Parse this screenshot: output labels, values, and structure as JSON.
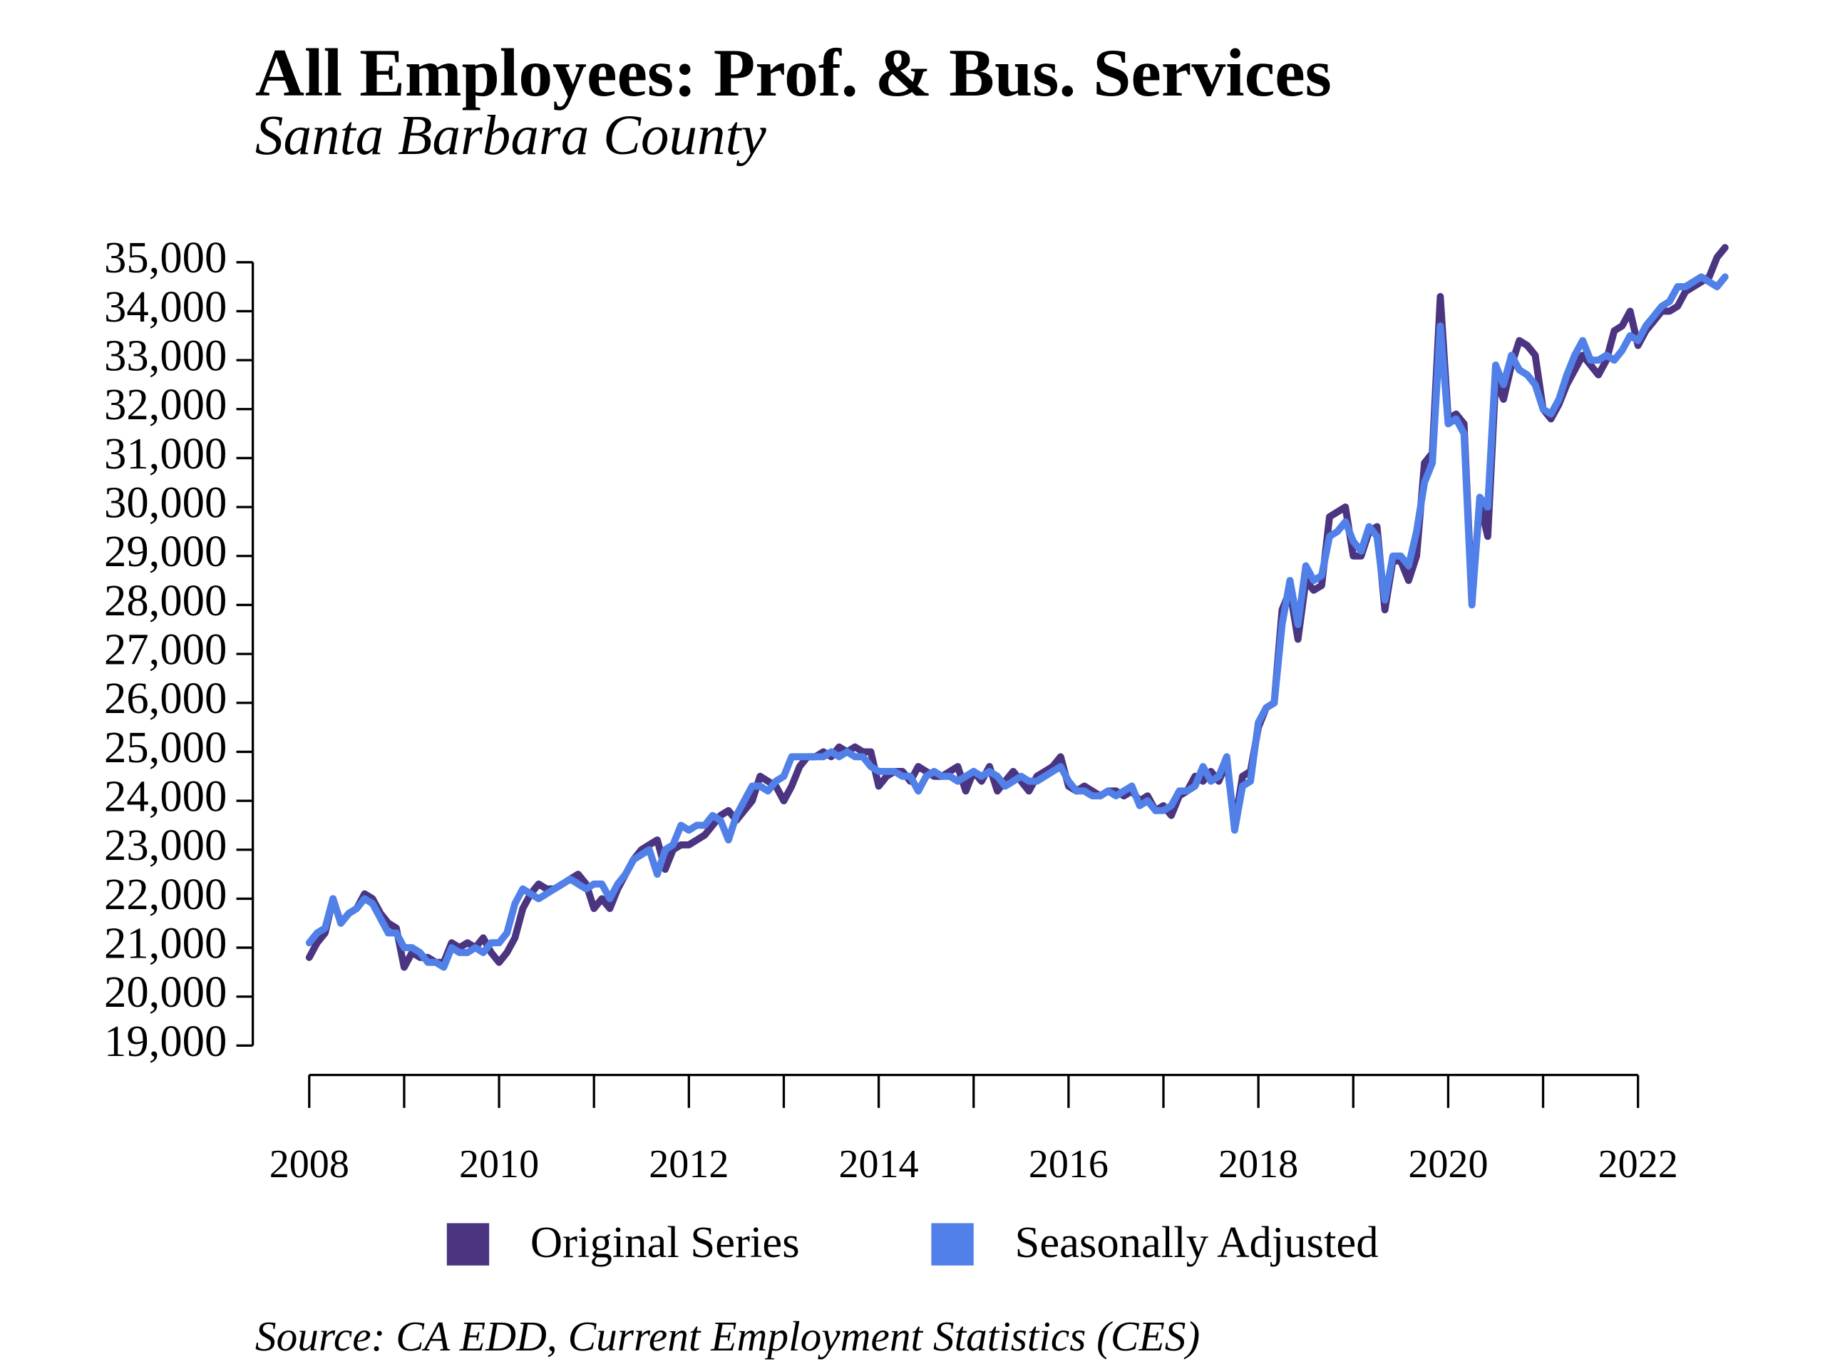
{
  "chart_data": {
    "type": "line",
    "title": "All Employees: Prof. & Bus. Services",
    "subtitle": "Santa Barbara County",
    "source": "Source: CA EDD, Current Employment Statistics (CES)",
    "legend": "bottom",
    "x": [
      2008,
      2008.083,
      2008.167,
      2008.25,
      2008.333,
      2008.417,
      2008.5,
      2008.583,
      2008.667,
      2008.75,
      2008.833,
      2008.917,
      2009,
      2009.083,
      2009.167,
      2009.25,
      2009.333,
      2009.417,
      2009.5,
      2009.583,
      2009.667,
      2009.75,
      2009.833,
      2009.917,
      2010,
      2010.083,
      2010.167,
      2010.25,
      2010.333,
      2010.417,
      2010.5,
      2010.583,
      2010.667,
      2010.75,
      2010.833,
      2010.917,
      2011,
      2011.083,
      2011.167,
      2011.25,
      2011.333,
      2011.417,
      2011.5,
      2011.583,
      2011.667,
      2011.75,
      2011.833,
      2011.917,
      2012,
      2012.083,
      2012.167,
      2012.25,
      2012.333,
      2012.417,
      2012.5,
      2012.583,
      2012.667,
      2012.75,
      2012.833,
      2012.917,
      2013,
      2013.083,
      2013.167,
      2013.25,
      2013.333,
      2013.417,
      2013.5,
      2013.583,
      2013.667,
      2013.75,
      2013.833,
      2013.917,
      2014,
      2014.083,
      2014.167,
      2014.25,
      2014.333,
      2014.417,
      2014.5,
      2014.583,
      2014.667,
      2014.75,
      2014.833,
      2014.917,
      2015,
      2015.083,
      2015.167,
      2015.25,
      2015.333,
      2015.417,
      2015.5,
      2015.583,
      2015.667,
      2015.75,
      2015.833,
      2015.917,
      2016,
      2016.083,
      2016.167,
      2016.25,
      2016.333,
      2016.417,
      2016.5,
      2016.583,
      2016.667,
      2016.75,
      2016.833,
      2016.917,
      2017,
      2017.083,
      2017.167,
      2017.25,
      2017.333,
      2017.417,
      2017.5,
      2017.583,
      2017.667,
      2017.75,
      2017.833,
      2017.917,
      2018,
      2018.083,
      2018.167,
      2018.25,
      2018.333,
      2018.417,
      2018.5,
      2018.583,
      2018.667,
      2018.75,
      2018.833,
      2018.917,
      2019,
      2019.083,
      2019.167,
      2019.25,
      2019.333,
      2019.417,
      2019.5,
      2019.583,
      2019.667,
      2019.75,
      2019.833,
      2019.917,
      2020,
      2020.083,
      2020.167,
      2020.25,
      2020.333,
      2020.417,
      2020.5,
      2020.583,
      2020.667,
      2020.75,
      2020.833,
      2020.917,
      2021,
      2021.083,
      2021.167,
      2021.25,
      2021.333,
      2021.417,
      2021.5,
      2021.583,
      2021.667,
      2021.75,
      2021.833,
      2021.917,
      2022,
      2022.083,
      2022.167,
      2022.25,
      2022.333,
      2022.417,
      2022.5,
      2022.583,
      2022.667,
      2022.75,
      2022.833,
      2022.917
    ],
    "series": [
      {
        "name": "Original Series",
        "color": "#4b3480",
        "values": [
          20800,
          21100,
          21300,
          22000,
          21500,
          21700,
          21800,
          22100,
          22000,
          21700,
          21500,
          21400,
          20600,
          20900,
          20800,
          20800,
          20700,
          20700,
          21100,
          21000,
          21100,
          21000,
          21200,
          20900,
          20700,
          20900,
          21200,
          21800,
          22100,
          22300,
          22200,
          22200,
          22300,
          22400,
          22500,
          22300,
          21800,
          22000,
          21800,
          22200,
          22500,
          22800,
          23000,
          23100,
          23200,
          22600,
          23000,
          23100,
          23100,
          23200,
          23300,
          23500,
          23700,
          23800,
          23600,
          23800,
          24000,
          24500,
          24400,
          24300,
          24000,
          24300,
          24700,
          24900,
          24900,
          25000,
          24900,
          25100,
          25000,
          25100,
          25000,
          25000,
          24300,
          24500,
          24600,
          24600,
          24400,
          24700,
          24600,
          24500,
          24500,
          24600,
          24700,
          24200,
          24600,
          24400,
          24700,
          24200,
          24400,
          24600,
          24400,
          24200,
          24500,
          24600,
          24700,
          24900,
          24300,
          24200,
          24300,
          24200,
          24100,
          24200,
          24200,
          24100,
          24200,
          24000,
          24100,
          23800,
          23900,
          23700,
          24100,
          24200,
          24500,
          24400,
          24600,
          24400,
          24800,
          23500,
          24500,
          24600,
          25500,
          25900,
          26000,
          27900,
          28300,
          27300,
          28500,
          28300,
          28400,
          29800,
          29900,
          30000,
          29000,
          29000,
          29500,
          29600,
          27900,
          28900,
          28900,
          28500,
          29000,
          30900,
          31100,
          34300,
          31800,
          31900,
          31700,
          28100,
          30100,
          29400,
          32600,
          32200,
          32900,
          33400,
          33300,
          33100,
          32000,
          31800,
          32100,
          32500,
          32800,
          33100,
          32900,
          32700,
          33000,
          33600,
          33700,
          34000,
          33300,
          33600,
          33800,
          34000,
          34000,
          34100,
          34400,
          34500,
          34600,
          34700,
          35100,
          35300
        ]
      },
      {
        "name": "Seasonally Adjusted",
        "color": "#5080e8",
        "values": [
          21100,
          21300,
          21400,
          22000,
          21500,
          21700,
          21800,
          22000,
          21900,
          21600,
          21300,
          21300,
          21000,
          21000,
          20900,
          20700,
          20700,
          20600,
          21000,
          20900,
          20900,
          21000,
          20900,
          21100,
          21100,
          21300,
          21900,
          22200,
          22100,
          22000,
          22100,
          22200,
          22300,
          22400,
          22300,
          22200,
          22300,
          22300,
          22000,
          22300,
          22500,
          22800,
          22900,
          23000,
          22500,
          23000,
          23100,
          23500,
          23400,
          23500,
          23500,
          23700,
          23600,
          23200,
          23700,
          24000,
          24300,
          24300,
          24200,
          24400,
          24500,
          24900,
          24900,
          24900,
          24900,
          24900,
          25000,
          24900,
          25000,
          24900,
          24900,
          24700,
          24600,
          24600,
          24600,
          24500,
          24500,
          24200,
          24500,
          24600,
          24500,
          24500,
          24400,
          24500,
          24600,
          24500,
          24600,
          24500,
          24300,
          24400,
          24500,
          24400,
          24400,
          24500,
          24600,
          24700,
          24400,
          24200,
          24200,
          24100,
          24100,
          24200,
          24100,
          24200,
          24300,
          23900,
          24000,
          23800,
          23800,
          23900,
          24200,
          24200,
          24300,
          24700,
          24400,
          24500,
          24900,
          23400,
          24300,
          24400,
          25600,
          25900,
          26000,
          27600,
          28500,
          27600,
          28800,
          28500,
          28600,
          29400,
          29500,
          29700,
          29300,
          29100,
          29600,
          29400,
          28100,
          29000,
          29000,
          28800,
          29500,
          30500,
          30900,
          33700,
          31700,
          31800,
          31500,
          28000,
          30200,
          30000,
          32900,
          32500,
          33100,
          32800,
          32700,
          32500,
          32000,
          31900,
          32200,
          32700,
          33100,
          33400,
          33000,
          33000,
          33100,
          33000,
          33200,
          33500,
          33400,
          33700,
          33900,
          34100,
          34200,
          34500,
          34500,
          34600,
          34700,
          34600,
          34500,
          34700
        ]
      }
    ],
    "xlim": [
      2007.6,
      2023.3
    ],
    "xticks": [
      2008,
      2010,
      2012,
      2014,
      2016,
      2018,
      2020,
      2022
    ],
    "xminor_ticks": [
      2009,
      2011,
      2013,
      2015,
      2017,
      2019,
      2021
    ],
    "ylim": [
      18700,
      35600
    ],
    "yticks": [
      {
        "value": 19000,
        "label": "19,000"
      },
      {
        "value": 20000,
        "label": "20,000"
      },
      {
        "value": 21000,
        "label": "21,000"
      },
      {
        "value": 22000,
        "label": "22,000"
      },
      {
        "value": 23000,
        "label": "23,000"
      },
      {
        "value": 24000,
        "label": "24,000"
      },
      {
        "value": 25000,
        "label": "25,000"
      },
      {
        "value": 26000,
        "label": "26,000"
      },
      {
        "value": 27000,
        "label": "27,000"
      },
      {
        "value": 28000,
        "label": "28,000"
      },
      {
        "value": 29000,
        "label": "29,000"
      },
      {
        "value": 30000,
        "label": "30,000"
      },
      {
        "value": 31000,
        "label": "31,000"
      },
      {
        "value": 32000,
        "label": "32,000"
      },
      {
        "value": 33000,
        "label": "33,000"
      },
      {
        "value": 34000,
        "label": "34,000"
      },
      {
        "value": 35000,
        "label": "35,000"
      }
    ],
    "grid": false
  }
}
